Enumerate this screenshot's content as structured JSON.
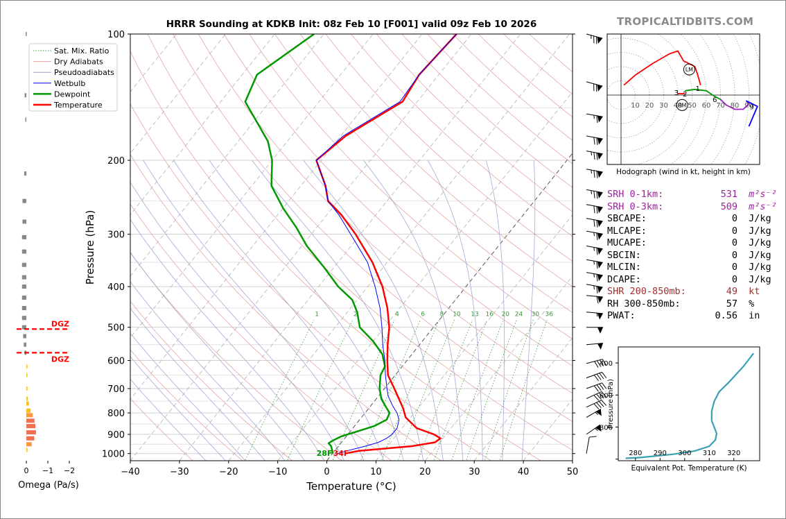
{
  "title": "HRRR Sounding at KDKB Init: 08z Feb 10 [F001] valid 09z Feb 10 2026",
  "brand": "TROPICALTIDBITS.COM",
  "chart_data": [
    {
      "name": "skewt",
      "type": "line",
      "xlabel": "Temperature (°C)",
      "ylabel": "Pressure (hPa)",
      "xlim": [
        -40,
        50
      ],
      "ylim": [
        1040,
        100
      ],
      "xticks": [
        -40,
        -30,
        -20,
        -10,
        0,
        10,
        20,
        30,
        40,
        50
      ],
      "xtick_labels": [
        "−40",
        "−30",
        "−20",
        "−10",
        "0",
        "10",
        "20",
        "30",
        "40",
        "50"
      ],
      "yticks": [
        100,
        200,
        300,
        400,
        500,
        600,
        700,
        800,
        900,
        1000
      ],
      "ytick_labels": [
        "100",
        "200",
        "300",
        "400",
        "500",
        "600",
        "700",
        "800",
        "900",
        "1000"
      ],
      "legend": {
        "position": "top-left",
        "entries": [
          {
            "label": "Sat. Mix. Ratio",
            "color": "#3a9a3a",
            "style": "dotted"
          },
          {
            "label": "Dry Adiabats",
            "color": "#e0a0a0",
            "style": "solid"
          },
          {
            "label": "Pseudoadiabats",
            "color": "#9a9ad0",
            "style": "solid"
          },
          {
            "label": "Wetbulb",
            "color": "#0000ff",
            "style": "solid"
          },
          {
            "label": "Dewpoint",
            "color": "#009900",
            "style": "solid"
          },
          {
            "label": "Temperature",
            "color": "#ff0000",
            "style": "solid"
          }
        ]
      },
      "series": [
        {
          "name": "Temperature",
          "color": "#ff0000",
          "points": [
            [
              1000,
              2.5
            ],
            [
              985,
              5
            ],
            [
              960,
              15
            ],
            [
              940,
              19
            ],
            [
              920,
              19.5
            ],
            [
              900,
              17.5
            ],
            [
              870,
              13
            ],
            [
              820,
              9
            ],
            [
              780,
              7
            ],
            [
              700,
              2
            ],
            [
              650,
              -1.5
            ],
            [
              600,
              -4
            ],
            [
              550,
              -6.5
            ],
            [
              500,
              -9
            ],
            [
              450,
              -12.5
            ],
            [
              400,
              -17
            ],
            [
              350,
              -23
            ],
            [
              300,
              -31
            ],
            [
              270,
              -37
            ],
            [
              250,
              -42
            ],
            [
              230,
              -45
            ],
            [
              200,
              -51
            ],
            [
              175,
              -49
            ],
            [
              145,
              -43
            ],
            [
              125,
              -44
            ],
            [
              100,
              -43
            ]
          ]
        },
        {
          "name": "Dewpoint",
          "color": "#009900",
          "points": [
            [
              1000,
              0
            ],
            [
              985,
              -0.5
            ],
            [
              960,
              -1.5
            ],
            [
              945,
              -2.5
            ],
            [
              930,
              -2
            ],
            [
              910,
              -1
            ],
            [
              890,
              1
            ],
            [
              860,
              4
            ],
            [
              830,
              5.5
            ],
            [
              800,
              5
            ],
            [
              770,
              3
            ],
            [
              740,
              1
            ],
            [
              700,
              -1
            ],
            [
              650,
              -3
            ],
            [
              620,
              -3.5
            ],
            [
              580,
              -6
            ],
            [
              540,
              -10
            ],
            [
              500,
              -15
            ],
            [
              460,
              -18
            ],
            [
              430,
              -21
            ],
            [
              400,
              -26
            ],
            [
              360,
              -32
            ],
            [
              320,
              -39
            ],
            [
              290,
              -44
            ],
            [
              260,
              -50
            ],
            [
              230,
              -56
            ],
            [
              200,
              -60
            ],
            [
              180,
              -64
            ],
            [
              160,
              -70
            ],
            [
              145,
              -75
            ],
            [
              125,
              -77
            ],
            [
              100,
              -72
            ]
          ]
        },
        {
          "name": "Wetbulb",
          "color": "#0000ff",
          "points": [
            [
              1000,
              1
            ],
            [
              985,
              2.5
            ],
            [
              960,
              5.5
            ],
            [
              940,
              7.5
            ],
            [
              920,
              8.5
            ],
            [
              900,
              9
            ],
            [
              870,
              9
            ],
            [
              830,
              8
            ],
            [
              800,
              6.5
            ],
            [
              770,
              4.5
            ],
            [
              730,
              2
            ],
            [
              700,
              0.5
            ],
            [
              650,
              -2
            ],
            [
              600,
              -4.5
            ],
            [
              550,
              -7.5
            ],
            [
              500,
              -10.5
            ],
            [
              450,
              -14
            ],
            [
              400,
              -18.5
            ],
            [
              350,
              -24
            ],
            [
              300,
              -32
            ],
            [
              270,
              -37.5
            ],
            [
              250,
              -42
            ],
            [
              230,
              -45
            ],
            [
              200,
              -51
            ],
            [
              175,
              -49.5
            ],
            [
              145,
              -43.5
            ],
            [
              125,
              -44
            ],
            [
              100,
              -43
            ]
          ]
        }
      ],
      "surface_labels": [
        {
          "text": "28F",
          "color": "#009900"
        },
        {
          "text": "34F",
          "color": "#ff0000"
        }
      ],
      "mixing_ratio_labels": [
        "1",
        "2",
        "4",
        "6",
        "8",
        "10",
        "13",
        "16",
        "20",
        "24",
        "30",
        "36"
      ],
      "mixing_ratio_values": [
        1,
        2,
        4,
        6,
        8,
        10,
        13,
        16,
        20,
        24,
        30,
        36
      ],
      "wind_barbs": [
        {
          "p": 100,
          "dir": 285,
          "spd": 75
        },
        {
          "p": 130,
          "dir": 285,
          "spd": 70
        },
        {
          "p": 155,
          "dir": 280,
          "spd": 65
        },
        {
          "p": 175,
          "dir": 280,
          "spd": 70
        },
        {
          "p": 190,
          "dir": 280,
          "spd": 75
        },
        {
          "p": 210,
          "dir": 280,
          "spd": 75
        },
        {
          "p": 235,
          "dir": 280,
          "spd": 75
        },
        {
          "p": 255,
          "dir": 280,
          "spd": 70
        },
        {
          "p": 275,
          "dir": 280,
          "spd": 70
        },
        {
          "p": 295,
          "dir": 280,
          "spd": 65
        },
        {
          "p": 320,
          "dir": 280,
          "spd": 65
        },
        {
          "p": 345,
          "dir": 280,
          "spd": 65
        },
        {
          "p": 370,
          "dir": 280,
          "spd": 65
        },
        {
          "p": 395,
          "dir": 280,
          "spd": 65
        },
        {
          "p": 420,
          "dir": 275,
          "spd": 60
        },
        {
          "p": 460,
          "dir": 275,
          "spd": 55
        },
        {
          "p": 500,
          "dir": 270,
          "spd": 50
        },
        {
          "p": 550,
          "dir": 265,
          "spd": 50
        },
        {
          "p": 610,
          "dir": 255,
          "spd": 40
        },
        {
          "p": 660,
          "dir": 250,
          "spd": 40
        },
        {
          "p": 700,
          "dir": 250,
          "spd": 40
        },
        {
          "p": 740,
          "dir": 245,
          "spd": 40
        },
        {
          "p": 775,
          "dir": 245,
          "spd": 40
        },
        {
          "p": 820,
          "dir": 240,
          "spd": 55
        },
        {
          "p": 900,
          "dir": 235,
          "spd": 55
        },
        {
          "p": 1000,
          "dir": 190,
          "spd": 10
        }
      ]
    },
    {
      "name": "omega",
      "type": "bar",
      "xlabel": "Omega (Pa/s)",
      "xlim": [
        0,
        -2
      ],
      "xticks": [
        "0",
        "−1",
        "−2"
      ],
      "dgz_label": "DGZ",
      "bars": [
        {
          "p": 100,
          "v": 0.03
        },
        {
          "p": 140,
          "v": 0.08
        },
        {
          "p": 160,
          "v": 0.05
        },
        {
          "p": 215,
          "v": 0.1
        },
        {
          "p": 250,
          "v": 0.18
        },
        {
          "p": 280,
          "v": 0.18
        },
        {
          "p": 305,
          "v": 0.2
        },
        {
          "p": 330,
          "v": 0.2
        },
        {
          "p": 355,
          "v": 0.2
        },
        {
          "p": 380,
          "v": 0.2
        },
        {
          "p": 400,
          "v": 0.2
        },
        {
          "p": 425,
          "v": 0.2
        },
        {
          "p": 450,
          "v": 0.2
        },
        {
          "p": 475,
          "v": 0.2
        },
        {
          "p": 500,
          "v": 0.2
        },
        {
          "p": 525,
          "v": 0.15
        },
        {
          "p": 550,
          "v": 0.12
        },
        {
          "p": 575,
          "v": 0.08
        },
        {
          "p": 620,
          "v": -0.02
        },
        {
          "p": 650,
          "v": -0.03
        },
        {
          "p": 700,
          "v": -0.05
        },
        {
          "p": 740,
          "v": -0.07
        },
        {
          "p": 760,
          "v": -0.12
        },
        {
          "p": 790,
          "v": -0.2
        },
        {
          "p": 810,
          "v": -0.3
        },
        {
          "p": 835,
          "v": -0.38
        },
        {
          "p": 860,
          "v": -0.42
        },
        {
          "p": 890,
          "v": -0.45
        },
        {
          "p": 920,
          "v": -0.37
        },
        {
          "p": 950,
          "v": -0.25
        },
        {
          "p": 980,
          "v": -0.05
        }
      ],
      "dgz_levels": [
        505,
        575
      ]
    },
    {
      "name": "hodograph",
      "type": "line",
      "caption": "Hodograph (wind in kt, height in km)",
      "ring_labels": [
        "10",
        "20",
        "30",
        "40",
        "50",
        "60",
        "70",
        "80",
        "90"
      ],
      "height_labels": [
        {
          "text": "1",
          "u": 54,
          "v": 5
        },
        {
          "text": "2",
          "u": 45,
          "v": 1
        },
        {
          "text": "3",
          "u": 39,
          "v": 2
        },
        {
          "text": "6",
          "u": 66,
          "v": -3
        },
        {
          "text": "9",
          "u": 92,
          "v": -8
        }
      ],
      "markers": [
        {
          "text": "LM",
          "u": 48,
          "v": 18
        },
        {
          "text": "RM",
          "u": 43,
          "v": -7
        }
      ],
      "segments": [
        {
          "color": "#ff0000",
          "points": [
            [
              2,
              7
            ],
            [
              10,
              14
            ],
            [
              22,
              22
            ],
            [
              34,
              29
            ],
            [
              40,
              31
            ],
            [
              44,
              24
            ],
            [
              52,
              20
            ],
            [
              54,
              14
            ],
            [
              56,
              7
            ]
          ]
        },
        {
          "color": "#ff0000",
          "points": [
            [
              40,
              1
            ],
            [
              45,
              1
            ]
          ]
        },
        {
          "color": "#009900",
          "points": [
            [
              45,
              3
            ],
            [
              52,
              4
            ],
            [
              60,
              3
            ],
            [
              66,
              -1
            ],
            [
              70,
              -3
            ]
          ]
        },
        {
          "color": "#a020c0",
          "points": [
            [
              70,
              -3
            ],
            [
              74,
              -7
            ],
            [
              80,
              -10
            ],
            [
              86,
              -10
            ],
            [
              90,
              -6
            ],
            [
              88,
              -4
            ]
          ]
        },
        {
          "color": "#0000ff",
          "points": [
            [
              88,
              -4
            ],
            [
              96,
              -8
            ],
            [
              90,
              -22
            ]
          ]
        }
      ]
    },
    {
      "name": "theta_e",
      "type": "line",
      "xlabel": "Equivalent Pot. Temperature (K)",
      "ylabel": "Pressure (hPa)",
      "xticks": [
        "280",
        "290",
        "300",
        "310",
        "320"
      ],
      "yticks": [
        "400",
        "600",
        "800"
      ],
      "points": [
        [
          995,
          276
        ],
        [
          990,
          282
        ],
        [
          970,
          295
        ],
        [
          950,
          304
        ],
        [
          920,
          310
        ],
        [
          880,
          312.5
        ],
        [
          840,
          313
        ],
        [
          800,
          312
        ],
        [
          760,
          311
        ],
        [
          700,
          311
        ],
        [
          640,
          312
        ],
        [
          580,
          314
        ],
        [
          520,
          318
        ],
        [
          470,
          321
        ],
        [
          420,
          324
        ],
        [
          380,
          326
        ],
        [
          340,
          328
        ]
      ],
      "color": "#3a9fb0"
    }
  ],
  "stats": [
    {
      "label": "SRH 0-1km:",
      "value": "531",
      "unit": "m²s⁻²",
      "color": "#a020a0"
    },
    {
      "label": "SRH 0-3km:",
      "value": "509",
      "unit": "m²s⁻²",
      "color": "#a020a0"
    },
    {
      "label": "SBCAPE:",
      "value": "0",
      "unit": "J/kg",
      "color": "#000000"
    },
    {
      "label": "MLCAPE:",
      "value": "0",
      "unit": "J/kg",
      "color": "#000000"
    },
    {
      "label": "MUCAPE:",
      "value": "0",
      "unit": "J/kg",
      "color": "#000000"
    },
    {
      "label": "SBCIN:",
      "value": "0",
      "unit": "J/kg",
      "color": "#000000"
    },
    {
      "label": "MLCIN:",
      "value": "0",
      "unit": "J/kg",
      "color": "#000000"
    },
    {
      "label": "DCAPE:",
      "value": "0",
      "unit": "J/kg",
      "color": "#000000"
    },
    {
      "label": "SHR 200-850mb:",
      "value": "49",
      "unit": "kt",
      "color": "#a03030"
    },
    {
      "label": "RH 300-850mb:",
      "value": "57",
      "unit": "%",
      "color": "#000000"
    },
    {
      "label": "PWAT:",
      "value": "0.56",
      "unit": "in",
      "color": "#000000"
    }
  ]
}
